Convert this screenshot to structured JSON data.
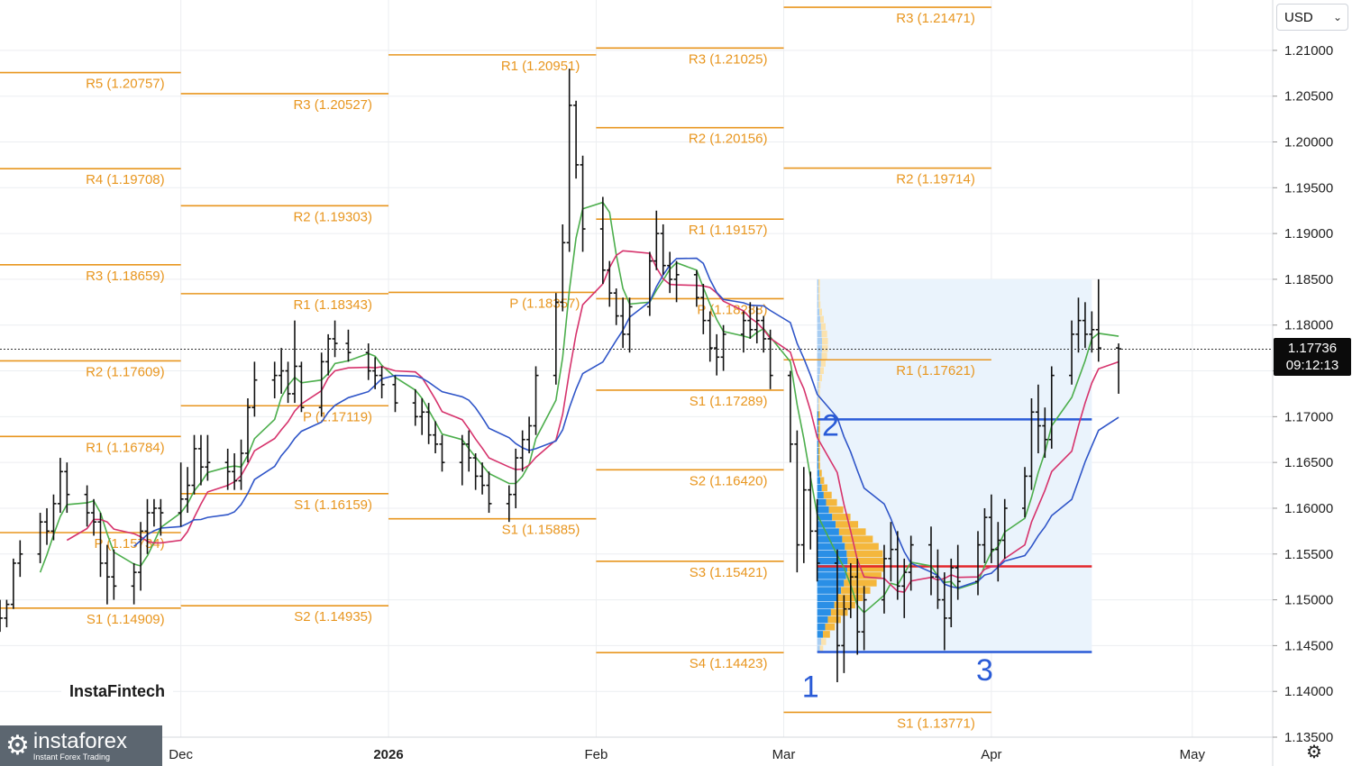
{
  "widget": {
    "currency": "USD",
    "currency_icon": "chevron-down-icon",
    "settings_icon": "gear-icon",
    "last_price": "1.17736",
    "countdown": "09:12:13",
    "brand_chart": "InstaFintech",
    "brand_logo": "instaforex",
    "brand_logo_sub": "Instant Forex Trading"
  },
  "chart_data": {
    "type": "ohlc",
    "y_axis": {
      "range": [
        1.135,
        1.2155
      ],
      "ticks": [
        "1.21000",
        "1.20500",
        "1.20000",
        "1.19500",
        "1.19000",
        "1.18500",
        "1.18000",
        "1.17500",
        "1.17000",
        "1.16500",
        "1.16000",
        "1.15500",
        "1.15000",
        "1.14500",
        "1.14000",
        "1.13500"
      ]
    },
    "x_axis": {
      "range": [
        "2025-11-04",
        "2026-05-13"
      ],
      "ticks": [
        {
          "label": "Dec",
          "date": "2025-12-01"
        },
        {
          "label": "2026",
          "date": "2026-01-01",
          "bold": true
        },
        {
          "label": "Feb",
          "date": "2026-02-01"
        },
        {
          "label": "Mar",
          "date": "2026-03-01"
        },
        {
          "label": "Apr",
          "date": "2026-04-01"
        },
        {
          "label": "May",
          "date": "2026-05-01"
        }
      ]
    },
    "grid": true,
    "current_price": 1.17736,
    "colors": {
      "candle": "#111111",
      "pivot": "#e8961f",
      "ma_fast": "#4cae4c",
      "ma_mid": "#d6336c",
      "ma_slow": "#2f55c8",
      "profile": "#2a5bd7",
      "poc": "#e3262b"
    },
    "pivot_levels": [
      {
        "from": "2025-11-04",
        "to": "2025-12-01",
        "levels": [
          {
            "label": "R5 (1.20757)",
            "value": 1.20757
          },
          {
            "label": "R4 (1.19708)",
            "value": 1.19708
          },
          {
            "label": "R3 (1.18659)",
            "value": 1.18659
          },
          {
            "label": "R2 (1.17609)",
            "value": 1.17609
          },
          {
            "label": "R1 (1.16784)",
            "value": 1.16784
          },
          {
            "label": "P (1.15734)",
            "value": 1.15734
          },
          {
            "label": "S1 (1.14909)",
            "value": 1.14909
          }
        ]
      },
      {
        "from": "2025-12-01",
        "to": "2026-01-01",
        "levels": [
          {
            "label": "R3 (1.20527)",
            "value": 1.20527
          },
          {
            "label": "R2 (1.19303)",
            "value": 1.19303
          },
          {
            "label": "R1 (1.18343)",
            "value": 1.18343
          },
          {
            "label": "P (1.17119)",
            "value": 1.17119
          },
          {
            "label": "S1 (1.16159)",
            "value": 1.16159
          },
          {
            "label": "S2 (1.14935)",
            "value": 1.14935
          }
        ]
      },
      {
        "from": "2026-01-01",
        "to": "2026-02-01",
        "levels": [
          {
            "label": "R1 (1.20951)",
            "value": 1.20951
          },
          {
            "label": "P (1.18357)",
            "value": 1.18357
          },
          {
            "label": "S1 (1.15885)",
            "value": 1.15885
          }
        ]
      },
      {
        "from": "2026-02-01",
        "to": "2026-03-01",
        "levels": [
          {
            "label": "R3 (1.21025)",
            "value": 1.21025
          },
          {
            "label": "R2 (1.20156)",
            "value": 1.20156
          },
          {
            "label": "R1 (1.19157)",
            "value": 1.19157
          },
          {
            "label": "P (1.18288)",
            "value": 1.18288
          },
          {
            "label": "S1 (1.17289)",
            "value": 1.17289
          },
          {
            "label": "S2 (1.16420)",
            "value": 1.1642
          },
          {
            "label": "S3 (1.15421)",
            "value": 1.15421
          },
          {
            "label": "S4 (1.14423)",
            "value": 1.14423
          }
        ]
      },
      {
        "from": "2026-03-01",
        "to": "2026-04-01",
        "levels": [
          {
            "label": "R3 (1.21471)",
            "value": 1.21471
          },
          {
            "label": "R2 (1.19714)",
            "value": 1.19714
          },
          {
            "label": "R1 (1.17621)",
            "value": 1.17621
          },
          {
            "label": "S1 (1.13771)",
            "value": 1.13771
          }
        ]
      }
    ],
    "volume_profile": {
      "from": "2026-03-06",
      "to": "2026-04-16",
      "high": 1.185,
      "low": 1.1443,
      "poc": 1.15365,
      "upper_box": 1.1697
    },
    "wave_labels": [
      {
        "text": "1",
        "date": "2026-03-05",
        "price": 1.1394
      },
      {
        "text": "2",
        "date": "2026-03-08",
        "price": 1.1679
      },
      {
        "text": "3",
        "date": "2026-03-31",
        "price": 1.1412
      }
    ],
    "ohlc": [
      [
        "2025-11-04",
        1.149,
        1.15,
        1.1465,
        1.148
      ],
      [
        "2025-11-05",
        1.148,
        1.15,
        1.147,
        1.1495
      ],
      [
        "2025-11-06",
        1.1495,
        1.1545,
        1.149,
        1.154
      ],
      [
        "2025-11-07",
        1.154,
        1.1565,
        1.1525,
        1.155
      ],
      [
        "2025-11-10",
        1.155,
        1.1595,
        1.154,
        1.1585
      ],
      [
        "2025-11-11",
        1.1585,
        1.16,
        1.156,
        1.1575
      ],
      [
        "2025-11-12",
        1.1575,
        1.1615,
        1.1565,
        1.1605
      ],
      [
        "2025-11-13",
        1.1605,
        1.1655,
        1.1595,
        1.164
      ],
      [
        "2025-11-14",
        1.164,
        1.165,
        1.1595,
        1.1615
      ],
      [
        "2025-11-17",
        1.1615,
        1.1625,
        1.158,
        1.1595
      ],
      [
        "2025-11-18",
        1.1595,
        1.161,
        1.157,
        1.1585
      ],
      [
        "2025-11-19",
        1.1585,
        1.1595,
        1.1525,
        1.154
      ],
      [
        "2025-11-20",
        1.154,
        1.156,
        1.1495,
        1.1525
      ],
      [
        "2025-11-21",
        1.1525,
        1.1555,
        1.15,
        1.1515
      ],
      [
        "2025-11-24",
        1.1515,
        1.154,
        1.1495,
        1.153
      ],
      [
        "2025-11-25",
        1.153,
        1.1585,
        1.151,
        1.1575
      ],
      [
        "2025-11-26",
        1.1575,
        1.161,
        1.155,
        1.1595
      ],
      [
        "2025-11-27",
        1.1595,
        1.161,
        1.158,
        1.16
      ],
      [
        "2025-11-28",
        1.16,
        1.161,
        1.157,
        1.1595
      ],
      [
        "2025-12-01",
        1.1595,
        1.165,
        1.158,
        1.161
      ],
      [
        "2025-12-02",
        1.161,
        1.1645,
        1.1595,
        1.1625
      ],
      [
        "2025-12-03",
        1.1625,
        1.168,
        1.1615,
        1.1665
      ],
      [
        "2025-12-04",
        1.1665,
        1.168,
        1.1625,
        1.1645
      ],
      [
        "2025-12-05",
        1.1645,
        1.168,
        1.163,
        1.165
      ],
      [
        "2025-12-08",
        1.165,
        1.1665,
        1.162,
        1.164
      ],
      [
        "2025-12-09",
        1.164,
        1.166,
        1.162,
        1.163
      ],
      [
        "2025-12-10",
        1.163,
        1.1675,
        1.162,
        1.166
      ],
      [
        "2025-12-11",
        1.166,
        1.172,
        1.165,
        1.171
      ],
      [
        "2025-12-12",
        1.171,
        1.176,
        1.17,
        1.174
      ],
      [
        "2025-12-15",
        1.174,
        1.176,
        1.172,
        1.1745
      ],
      [
        "2025-12-16",
        1.1745,
        1.1775,
        1.1725,
        1.175
      ],
      [
        "2025-12-17",
        1.175,
        1.176,
        1.1715,
        1.1725
      ],
      [
        "2025-12-18",
        1.1725,
        1.1805,
        1.1715,
        1.1755
      ],
      [
        "2025-12-19",
        1.1755,
        1.176,
        1.1705,
        1.171
      ],
      [
        "2025-12-22",
        1.171,
        1.177,
        1.17,
        1.176
      ],
      [
        "2025-12-23",
        1.176,
        1.179,
        1.1745,
        1.1785
      ],
      [
        "2025-12-24",
        1.1785,
        1.1805,
        1.1765,
        1.178
      ],
      [
        "2025-12-26",
        1.178,
        1.1795,
        1.176,
        1.177
      ],
      [
        "2025-12-29",
        1.177,
        1.178,
        1.174,
        1.175
      ],
      [
        "2025-12-30",
        1.175,
        1.1765,
        1.173,
        1.1745
      ],
      [
        "2025-12-31",
        1.1745,
        1.1755,
        1.172,
        1.1735
      ],
      [
        "2026-01-02",
        1.1735,
        1.1745,
        1.1705,
        1.1715
      ],
      [
        "2026-01-05",
        1.1715,
        1.173,
        1.169,
        1.17
      ],
      [
        "2026-01-06",
        1.17,
        1.172,
        1.168,
        1.1705
      ],
      [
        "2026-01-07",
        1.1705,
        1.1715,
        1.167,
        1.168
      ],
      [
        "2026-01-08",
        1.168,
        1.1695,
        1.166,
        1.167
      ],
      [
        "2026-01-09",
        1.167,
        1.168,
        1.164,
        1.165
      ],
      [
        "2026-01-12",
        1.165,
        1.168,
        1.1625,
        1.167
      ],
      [
        "2026-01-13",
        1.167,
        1.1685,
        1.164,
        1.1655
      ],
      [
        "2026-01-14",
        1.1655,
        1.166,
        1.162,
        1.1635
      ],
      [
        "2026-01-15",
        1.1635,
        1.165,
        1.1615,
        1.1625
      ],
      [
        "2026-01-16",
        1.1625,
        1.164,
        1.1595,
        1.1605
      ],
      [
        "2026-01-19",
        1.1605,
        1.1625,
        1.1585,
        1.1615
      ],
      [
        "2026-01-20",
        1.1615,
        1.1665,
        1.16,
        1.1655
      ],
      [
        "2026-01-21",
        1.1655,
        1.1685,
        1.164,
        1.1675
      ],
      [
        "2026-01-22",
        1.1675,
        1.17,
        1.166,
        1.169
      ],
      [
        "2026-01-23",
        1.169,
        1.1755,
        1.168,
        1.1745
      ],
      [
        "2026-01-26",
        1.1745,
        1.1835,
        1.1735,
        1.1825
      ],
      [
        "2026-01-27",
        1.1825,
        1.191,
        1.1815,
        1.189
      ],
      [
        "2026-01-28",
        1.189,
        1.208,
        1.188,
        1.204
      ],
      [
        "2026-01-29",
        1.204,
        1.2045,
        1.196,
        1.1975
      ],
      [
        "2026-01-30",
        1.1975,
        1.1985,
        1.188,
        1.1905
      ],
      [
        "2026-02-02",
        1.1905,
        1.194,
        1.1845,
        1.186
      ],
      [
        "2026-02-03",
        1.186,
        1.187,
        1.182,
        1.1835
      ],
      [
        "2026-02-04",
        1.1835,
        1.184,
        1.18,
        1.181
      ],
      [
        "2026-02-05",
        1.181,
        1.183,
        1.1775,
        1.179
      ],
      [
        "2026-02-06",
        1.179,
        1.183,
        1.177,
        1.182
      ],
      [
        "2026-02-09",
        1.182,
        1.188,
        1.181,
        1.187
      ],
      [
        "2026-02-10",
        1.187,
        1.1925,
        1.186,
        1.19
      ],
      [
        "2026-02-11",
        1.19,
        1.191,
        1.1855,
        1.1865
      ],
      [
        "2026-02-12",
        1.1865,
        1.188,
        1.1835,
        1.185
      ],
      [
        "2026-02-13",
        1.185,
        1.187,
        1.1825,
        1.1855
      ],
      [
        "2026-02-16",
        1.1855,
        1.186,
        1.182,
        1.183
      ],
      [
        "2026-02-17",
        1.183,
        1.1845,
        1.179,
        1.1805
      ],
      [
        "2026-02-18",
        1.1805,
        1.1815,
        1.176,
        1.1775
      ],
      [
        "2026-02-19",
        1.1775,
        1.179,
        1.1745,
        1.1765
      ],
      [
        "2026-02-20",
        1.1765,
        1.18,
        1.175,
        1.179
      ],
      [
        "2026-02-23",
        1.179,
        1.1815,
        1.177,
        1.1805
      ],
      [
        "2026-02-24",
        1.1805,
        1.1825,
        1.1785,
        1.1795
      ],
      [
        "2026-02-25",
        1.1795,
        1.182,
        1.178,
        1.1805
      ],
      [
        "2026-02-26",
        1.1805,
        1.181,
        1.177,
        1.1785
      ],
      [
        "2026-02-27",
        1.1785,
        1.1795,
        1.173,
        1.1745
      ],
      [
        "2026-03-02",
        1.1745,
        1.175,
        1.165,
        1.167
      ],
      [
        "2026-03-03",
        1.167,
        1.1685,
        1.153,
        1.156
      ],
      [
        "2026-03-04",
        1.156,
        1.1645,
        1.154,
        1.162
      ],
      [
        "2026-03-05",
        1.162,
        1.164,
        1.1555,
        1.1575
      ],
      [
        "2026-03-06",
        1.1575,
        1.161,
        1.152,
        1.154
      ],
      [
        "2026-03-09",
        1.154,
        1.1555,
        1.141,
        1.145
      ],
      [
        "2026-03-10",
        1.145,
        1.1505,
        1.142,
        1.149
      ],
      [
        "2026-03-11",
        1.149,
        1.154,
        1.148,
        1.1525
      ],
      [
        "2026-03-12",
        1.1525,
        1.1545,
        1.144,
        1.1465
      ],
      [
        "2026-03-13",
        1.1465,
        1.1515,
        1.1445,
        1.15
      ],
      [
        "2026-03-16",
        1.15,
        1.156,
        1.1485,
        1.1545
      ],
      [
        "2026-03-17",
        1.1545,
        1.1585,
        1.152,
        1.1555
      ],
      [
        "2026-03-18",
        1.1555,
        1.1575,
        1.15,
        1.1515
      ],
      [
        "2026-03-19",
        1.1515,
        1.1545,
        1.148,
        1.153
      ],
      [
        "2026-03-20",
        1.153,
        1.157,
        1.151,
        1.156
      ],
      [
        "2026-03-23",
        1.156,
        1.158,
        1.1505,
        1.1525
      ],
      [
        "2026-03-24",
        1.1525,
        1.1555,
        1.149,
        1.15
      ],
      [
        "2026-03-25",
        1.15,
        1.153,
        1.1445,
        1.148
      ],
      [
        "2026-03-26",
        1.148,
        1.1545,
        1.147,
        1.1535
      ],
      [
        "2026-03-27",
        1.1535,
        1.156,
        1.15,
        1.152
      ],
      [
        "2026-03-30",
        1.152,
        1.1575,
        1.1505,
        1.156
      ],
      [
        "2026-03-31",
        1.156,
        1.16,
        1.154,
        1.159
      ],
      [
        "2026-04-01",
        1.159,
        1.1615,
        1.154,
        1.1555
      ],
      [
        "2026-04-02",
        1.1555,
        1.1585,
        1.152,
        1.1565
      ],
      [
        "2026-04-03",
        1.1565,
        1.161,
        1.1545,
        1.16
      ],
      [
        "2026-04-06",
        1.16,
        1.1645,
        1.159,
        1.1635
      ],
      [
        "2026-04-07",
        1.1635,
        1.172,
        1.162,
        1.1705
      ],
      [
        "2026-04-08",
        1.1705,
        1.1735,
        1.166,
        1.169
      ],
      [
        "2026-04-09",
        1.169,
        1.171,
        1.1655,
        1.1675
      ],
      [
        "2026-04-10",
        1.1675,
        1.1755,
        1.1665,
        1.1745
      ],
      [
        "2026-04-13",
        1.1745,
        1.1805,
        1.1735,
        1.179
      ],
      [
        "2026-04-14",
        1.179,
        1.183,
        1.177,
        1.1805
      ],
      [
        "2026-04-15",
        1.1805,
        1.1825,
        1.1775,
        1.179
      ],
      [
        "2026-04-16",
        1.179,
        1.1815,
        1.177,
        1.1795
      ],
      [
        "2026-04-17",
        1.1795,
        1.185,
        1.176,
        1.1775
      ],
      [
        "2026-04-20",
        1.1775,
        1.178,
        1.1725,
        1.1774
      ]
    ]
  }
}
